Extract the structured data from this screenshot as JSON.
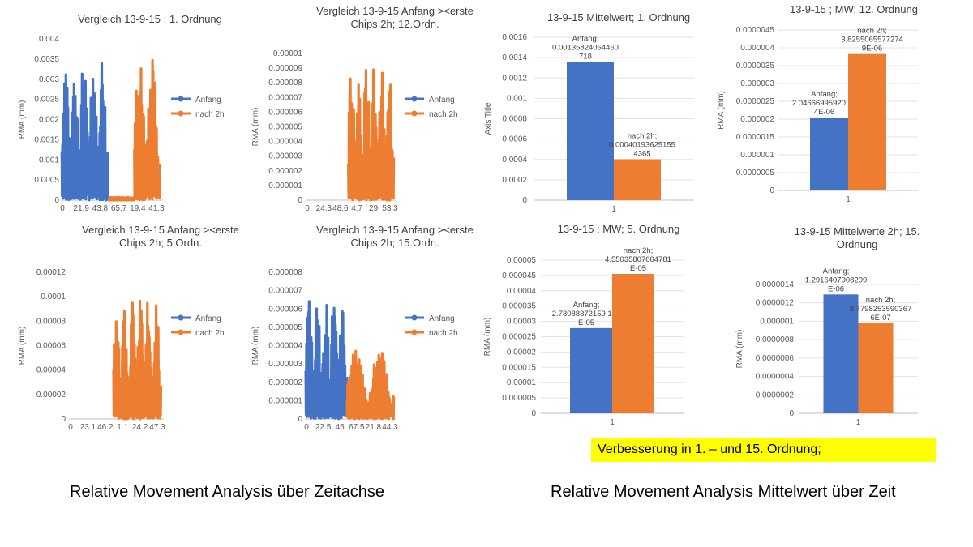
{
  "slide": {
    "caption_left": "Relative Movement Analysis über Zeitachse",
    "caption_right": "Relative Movement Analysis Mittelwert über Zeit",
    "highlight": "Verbesserung in 1. – und 15. Ordnung;"
  },
  "colors": {
    "anfang": "#4472c4",
    "nach2h": "#ed7d31",
    "axis": "#bfbfbf",
    "text": "#595959"
  },
  "chart_data": [
    {
      "type": "line",
      "title_lines": [
        "Vergleich 13-9-15 ; 1. Ordnung"
      ],
      "ylabel": "RMA (mm)",
      "yticks": [
        "0",
        "0.0005",
        "0.001",
        "0.0015",
        "0.002",
        "0.0025",
        "0.003",
        "0.0035",
        "0.004"
      ],
      "ylim": [
        0,
        0.004
      ],
      "xticks": [
        "0",
        "21.9",
        "43.8",
        "65.7",
        "19.4",
        "41.3"
      ],
      "legend": [
        "Anfang",
        "nach 2h"
      ],
      "legend_position": "right",
      "series": [
        {
          "name": "Anfang",
          "x_range": [
            0.01,
            0.46
          ],
          "peak": 0.0037,
          "floor": 0.0,
          "cycles": 5
        },
        {
          "name": "nach 2h",
          "x_range": [
            0.47,
            0.72
          ],
          "peak": 0.00012,
          "floor": 0.0,
          "cycles": 0
        },
        {
          "name": "nach 2h",
          "x_range": [
            0.72,
            0.97
          ],
          "peak": 0.0036,
          "floor": 0.0,
          "cycles": 2
        }
      ]
    },
    {
      "type": "line",
      "title_lines": [
        "Vergleich 13-9-15 Anfang ><erste",
        "Chips 2h; 12.Ordn."
      ],
      "ylabel": "RMA (mm)",
      "yticks": [
        "0",
        "0.000001",
        "0.000002",
        "0.000003",
        "0.000004",
        "0.000005",
        "0.000006",
        "0.000007",
        "0.000008",
        "0.000009",
        "0.00001"
      ],
      "ylim": [
        0,
        1e-05
      ],
      "xticks": [
        "0",
        "24.3",
        "48.6",
        "4.7",
        "29",
        "53.3"
      ],
      "legend": [
        "Anfang",
        "nach 2h"
      ],
      "legend_position": "right",
      "series": [
        {
          "name": "nach 2h",
          "x_range": [
            0.47,
            0.97
          ],
          "peak": 9.4e-06,
          "floor": 0.0,
          "cycles": 6
        }
      ]
    },
    {
      "type": "line",
      "title_lines": [
        "Vergleich 13-9-15 Anfang ><erste",
        "Chips 2h; 5.Ordn."
      ],
      "ylabel": "RMA (mm)",
      "yticks": [
        "0",
        "0.00002",
        "0.00004",
        "0.00006",
        "0.00008",
        "0.0001",
        "0.00012"
      ],
      "ylim": [
        0,
        0.00012
      ],
      "xticks": [
        "0",
        "23.1",
        "46.2",
        "1.1",
        "24.2",
        "47.3"
      ],
      "legend": [
        "Anfang",
        "nach 2h"
      ],
      "legend_position": "right",
      "series": [
        {
          "name": "nach 2h",
          "x_range": [
            0.47,
            0.97
          ],
          "peak": 0.0001,
          "floor": 0.0,
          "cycles": 6
        }
      ]
    },
    {
      "type": "line",
      "title_lines": [
        "Vergleich 13-9-15 Anfang ><erste",
        "Chips 2h; 15.Ordn."
      ],
      "ylabel": "RMA (mm)",
      "yticks": [
        "0",
        "0.000001",
        "0.000002",
        "0.000003",
        "0.000004",
        "0.000005",
        "0.000006",
        "0.000007",
        "0.000008"
      ],
      "ylim": [
        0,
        8e-06
      ],
      "xticks": [
        "0",
        "22.5",
        "45",
        "67.5",
        "21.8",
        "44.3"
      ],
      "legend": [
        "Anfang",
        "nach 2h"
      ],
      "legend_position": "right",
      "series": [
        {
          "name": "Anfang",
          "x_range": [
            0.01,
            0.46
          ],
          "peak": 6.8e-06,
          "floor": 0.0,
          "cycles": 5
        },
        {
          "name": "nach 2h",
          "x_range": [
            0.46,
            0.97
          ],
          "peak": 3.8e-06,
          "floor": 0.0,
          "cycles": 2
        }
      ]
    },
    {
      "type": "bar",
      "title_lines": [
        "13-9-15 Mittelwert; 1. Ordnung"
      ],
      "ylabel": "Axis Title",
      "yticks": [
        "0",
        "0.0002",
        "0.0004",
        "0.0006",
        "0.0008",
        "0.001",
        "0.0012",
        "0.0014",
        "0.0016"
      ],
      "ylim": [
        0,
        0.0016
      ],
      "categories": [
        "1"
      ],
      "series": [
        {
          "name": "Anfang",
          "values": [
            0.00135824054460718
          ],
          "label_lines": [
            "Anfang;",
            "0.00135824054460",
            "718"
          ]
        },
        {
          "name": "nach 2h",
          "values": [
            0.000401936251554365
          ],
          "label_lines": [
            "nach 2h;",
            "0.00040193625155",
            "4365"
          ]
        }
      ]
    },
    {
      "type": "bar",
      "title_lines": [
        "13-9-15 ; MW; 12. Ordnung"
      ],
      "ylabel": "RMA (mm)",
      "yticks": [
        "0",
        "0.0000005",
        "0.000001",
        "0.0000015",
        "0.000002",
        "0.0000025",
        "0.000003",
        "0.0000035",
        "0.000004",
        "0.0000045"
      ],
      "ylim": [
        0,
        4.5e-06
      ],
      "categories": [
        "1"
      ],
      "series": [
        {
          "name": "Anfang",
          "values": [
            2.0466699592027e-06
          ],
          "label_lines": [
            "Anfang;",
            "2.04666995920 27",
            "4E-06"
          ]
        },
        {
          "name": "nach 2h",
          "values": [
            3.8255065577274e-06
          ],
          "label_lines": [
            "nach 2h;",
            "3.8255065577274",
            "9E-06"
          ]
        }
      ]
    },
    {
      "type": "bar",
      "title_lines": [
        "13-9-15 ; MW; 5. Ordnung"
      ],
      "ylabel": "RMA (mm)",
      "yticks": [
        "0",
        "0.000005",
        "0.00001",
        "0.000015",
        "0.00002",
        "0.000025",
        "0.00003",
        "0.000035",
        "0.00004",
        "0.000045",
        "0.00005"
      ],
      "ylim": [
        0,
        5e-05
      ],
      "categories": [
        "1"
      ],
      "series": [
        {
          "name": "Anfang",
          "values": [
            2.78088372159155e-05
          ],
          "label_lines": [
            "Anfang;",
            "2.78088372159 155",
            "E-05"
          ]
        },
        {
          "name": "nach 2h",
          "values": [
            4.55035807004781e-05
          ],
          "label_lines": [
            "nach 2h;",
            "4.55035807004781",
            "E-05"
          ]
        }
      ]
    },
    {
      "type": "bar",
      "title_lines": [
        "13-9-15 Mittelwerte  2h; 15.",
        "Ordnung"
      ],
      "ylabel": "RMA (mm)",
      "yticks": [
        "0",
        "0.0000002",
        "0.0000004",
        "0.0000006",
        "0.0000008",
        "0.000001",
        "0.0000012",
        "0.0000014"
      ],
      "ylim": [
        0,
        1.4e-06
      ],
      "categories": [
        "1"
      ],
      "series": [
        {
          "name": "Anfang",
          "values": [
            1.29164079082e-06
          ],
          "label_lines": [
            "Anfang;",
            "1.2916407908209",
            "E-06"
          ]
        },
        {
          "name": "nach 2h",
          "values": [
            9.77982535903676e-07
          ],
          "label_lines": [
            "nach 2h;",
            "9.7798253590367",
            "6E-07"
          ]
        }
      ]
    }
  ]
}
